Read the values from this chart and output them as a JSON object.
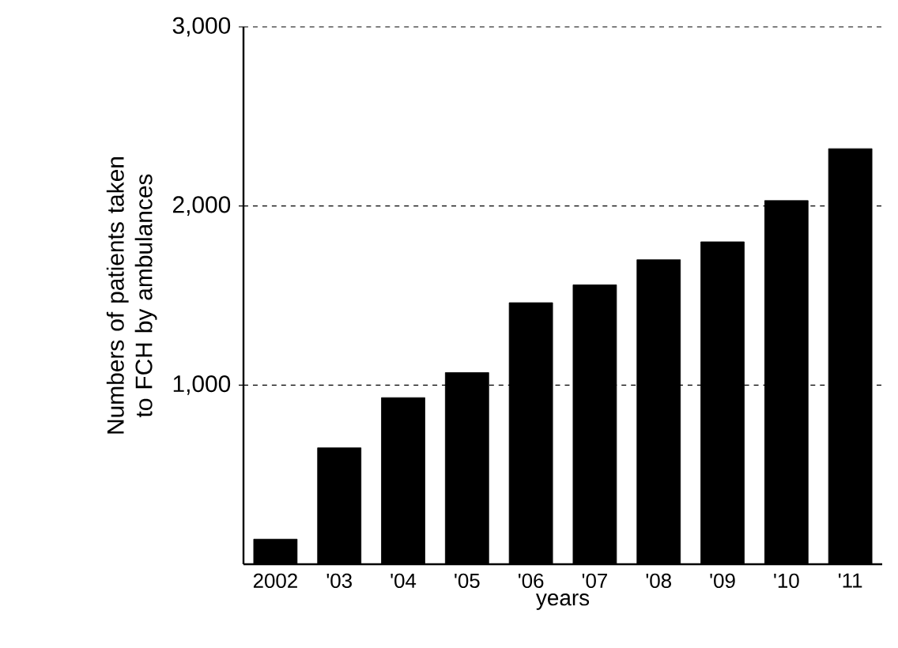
{
  "chart_data": {
    "type": "bar",
    "xlabel": "years",
    "ylabel": "Numbers of patients taken to FCH by ambulances",
    "categories": [
      "2002",
      "'03",
      "'04",
      "'05",
      "'06",
      "'07",
      "'08",
      "'09",
      "'10",
      "'11"
    ],
    "values": [
      140,
      650,
      930,
      1070,
      1460,
      1560,
      1700,
      1800,
      2030,
      2320
    ],
    "color": "#000000",
    "ylim": [
      0,
      3000
    ],
    "yticks": [
      {
        "value": 1000,
        "label": "1,000"
      },
      {
        "value": 2000,
        "label": "2,000"
      },
      {
        "value": 3000,
        "label": "3,000"
      }
    ],
    "grid": "y"
  }
}
